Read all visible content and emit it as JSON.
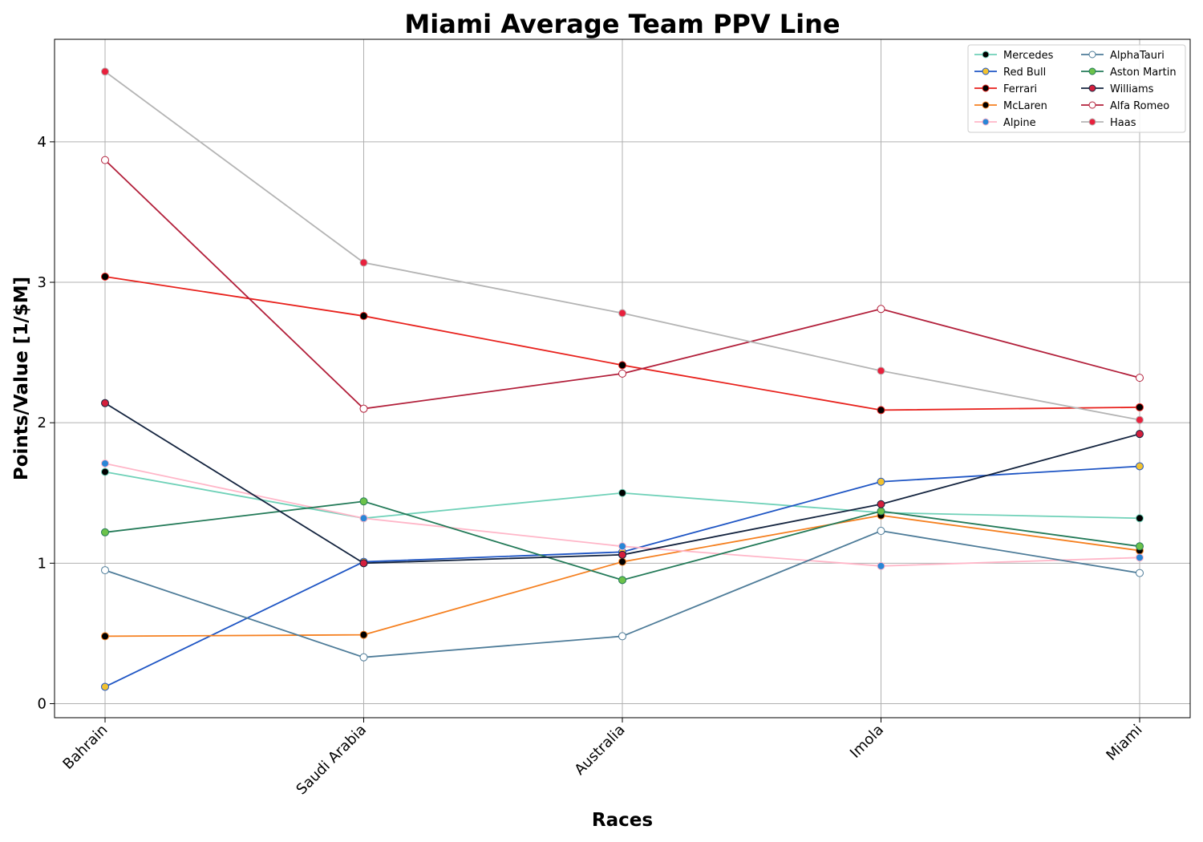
{
  "chart_data": {
    "type": "line",
    "title": "Miami Average Team PPV Line",
    "xlabel": "Races",
    "ylabel": "Points/Value [1/$M]",
    "categories": [
      "Bahrain",
      "Saudi Arabia",
      "Australia",
      "Imola",
      "Miami"
    ],
    "yticks": [
      0,
      1,
      2,
      3,
      4
    ],
    "ylim": [
      -0.1,
      4.73
    ],
    "grid": true,
    "legend_position": "top-right",
    "legend_columns": 2,
    "series": [
      {
        "name": "Mercedes",
        "values": [
          1.65,
          1.32,
          1.5,
          1.36,
          1.32
        ],
        "line_color": "#6fd1b8",
        "marker_fill": "#000000",
        "marker_edge": "#6fd1b8"
      },
      {
        "name": "Red Bull",
        "values": [
          0.12,
          1.01,
          1.08,
          1.58,
          1.69
        ],
        "line_color": "#1e55c4",
        "marker_fill": "#f2c230",
        "marker_edge": "#1e55c4"
      },
      {
        "name": "Ferrari",
        "values": [
          3.04,
          2.76,
          2.41,
          2.09,
          2.11
        ],
        "line_color": "#e8211c",
        "marker_fill": "#000000",
        "marker_edge": "#e8211c"
      },
      {
        "name": "McLaren",
        "values": [
          0.48,
          0.49,
          1.01,
          1.34,
          1.09
        ],
        "line_color": "#f58020",
        "marker_fill": "#000000",
        "marker_edge": "#f58020"
      },
      {
        "name": "Alpine",
        "values": [
          1.71,
          1.32,
          1.12,
          0.98,
          1.04
        ],
        "line_color": "#ffb6c8",
        "marker_fill": "#2a86d6",
        "marker_edge": "#ffb6c8"
      },
      {
        "name": "AlphaTauri",
        "values": [
          0.95,
          0.33,
          0.48,
          1.23,
          0.93
        ],
        "line_color": "#4e7c99",
        "marker_fill": "#ffffff",
        "marker_edge": "#4e7c99"
      },
      {
        "name": "Aston Martin",
        "values": [
          1.22,
          1.44,
          0.88,
          1.37,
          1.12
        ],
        "line_color": "#237a58",
        "marker_fill": "#6cc24a",
        "marker_edge": "#237a58"
      },
      {
        "name": "Williams",
        "values": [
          2.14,
          1.0,
          1.06,
          1.42,
          1.92
        ],
        "line_color": "#14243f",
        "marker_fill": "#d41f3c",
        "marker_edge": "#14243f"
      },
      {
        "name": "Alfa Romeo",
        "values": [
          3.87,
          2.1,
          2.35,
          2.81,
          2.32
        ],
        "line_color": "#b21f3a",
        "marker_fill": "#ffffff",
        "marker_edge": "#b21f3a"
      },
      {
        "name": "Haas",
        "values": [
          4.5,
          3.14,
          2.78,
          2.37,
          2.02
        ],
        "line_color": "#b4b4b4",
        "marker_fill": "#e8213d",
        "marker_edge": "#b4b4b4"
      }
    ]
  }
}
